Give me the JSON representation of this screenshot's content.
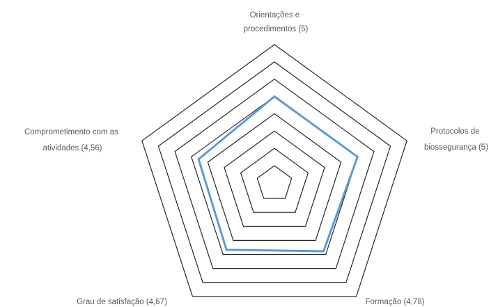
{
  "chart_data": {
    "type": "radar",
    "title": "",
    "axes": [
      {
        "label_lines": [
          "Orientações e",
          "procedimentos (5)"
        ],
        "value": 5
      },
      {
        "label_lines": [
          "Protocolos de",
          "biossegurança (5)"
        ],
        "value": 5
      },
      {
        "label_lines": [
          "Formação  (4,78)"
        ],
        "value": 4.78
      },
      {
        "label_lines": [
          "Grau de satisfação  (4,67)"
        ],
        "value": 4.67
      },
      {
        "label_lines": [
          "Comprometimento com as",
          "atividades  (4,56)"
        ],
        "value": 4.56
      }
    ],
    "rings": [
      1,
      2,
      3,
      4,
      5,
      6,
      7,
      8
    ],
    "r_min": 1,
    "r_max": 8,
    "grid": true,
    "series_color": "#5b9bd5",
    "grid_color": "#262626"
  }
}
